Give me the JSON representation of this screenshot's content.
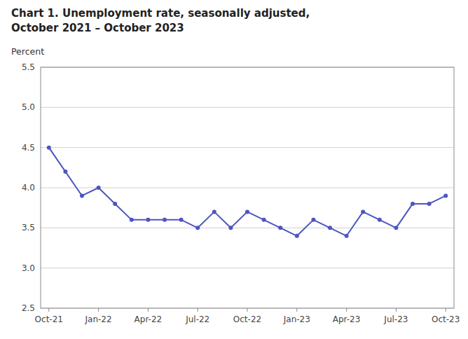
{
  "chart_data": {
    "type": "line",
    "title": "Chart 1. Unemployment rate, seasonally adjusted,",
    "subtitle": "October 2021 – October 2023",
    "y_label": "Percent",
    "categories": [
      "Oct-21",
      null,
      null,
      "Jan-22",
      null,
      null,
      "Apr-22",
      null,
      null,
      "Jul-22",
      null,
      null,
      "Oct-22",
      null,
      null,
      "Jan-23",
      null,
      null,
      "Apr-23",
      null,
      null,
      "Jul-23",
      null,
      null,
      "Oct-23"
    ],
    "values": [
      4.5,
      4.2,
      3.9,
      4.0,
      3.8,
      3.6,
      3.6,
      3.6,
      3.6,
      3.5,
      3.7,
      3.5,
      3.7,
      3.6,
      3.5,
      3.4,
      3.6,
      3.5,
      3.4,
      3.7,
      3.6,
      3.5,
      3.8,
      3.8,
      3.9
    ],
    "color": "#4d55c0",
    "marker": "circle",
    "ylim": [
      2.5,
      5.5
    ],
    "yticks": [
      2.5,
      {
        "value": 3.0,
        "label": "3.0"
      },
      3.5,
      {
        "value": 4.0,
        "label": "4.0"
      },
      4.5,
      {
        "value": 5.0,
        "label": "5.0"
      },
      5.5
    ],
    "grid": true
  }
}
